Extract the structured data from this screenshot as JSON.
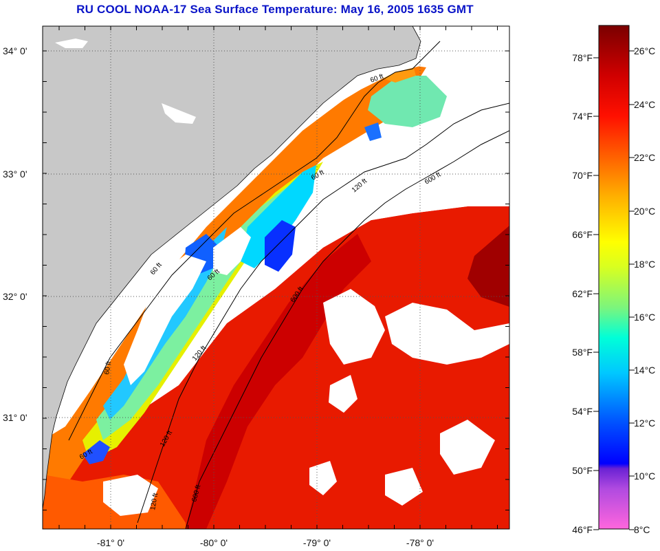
{
  "title": "RU COOL  NOAA-17  Sea Surface Temperature:  May 16, 2005 1635 GMT",
  "colors": {
    "land": "#c8c8c8",
    "cloud": "#ffffff",
    "grid": "#444444",
    "title": "#0a14c8",
    "colormap": [
      "#ff66dd",
      "#7a2ad8",
      "#0000ff",
      "#00a0ff",
      "#00e8ff",
      "#7cf57c",
      "#ffff00",
      "#ffb000",
      "#ff6000",
      "#ff0000",
      "#b00000",
      "#7a0000"
    ]
  },
  "map": {
    "latitude_labels": [
      "34° 0'",
      "33° 0'",
      "32° 0'",
      "31° 0'"
    ],
    "longitude_labels": [
      "-81° 0'",
      "-80° 0'",
      "-79° 0'",
      "-78° 0'"
    ]
  },
  "depth_contours": [
    "60 ft",
    "120 ft",
    "600 ft"
  ],
  "depth_label_instances": [
    {
      "text": "60 ft"
    },
    {
      "text": "60 ft"
    },
    {
      "text": "60 ft"
    },
    {
      "text": "60 ft"
    },
    {
      "text": "60 ft"
    },
    {
      "text": "60 ft"
    },
    {
      "text": "120 ft"
    },
    {
      "text": "120 ft"
    },
    {
      "text": "120 ft"
    },
    {
      "text": "120 ft"
    },
    {
      "text": "600 ft"
    },
    {
      "text": "600 ft"
    },
    {
      "text": "600 ft"
    }
  ],
  "colorbar": {
    "fahrenheit_labels": [
      "78°F",
      "74°F",
      "70°F",
      "66°F",
      "62°F",
      "58°F",
      "54°F",
      "50°F",
      "46°F"
    ],
    "celsius_labels": [
      "26°C",
      "24°C",
      "22°C",
      "20°C",
      "18°C",
      "16°C",
      "14°C",
      "12°C",
      "10°C",
      "8°C"
    ],
    "range_celsius": [
      8,
      27.3
    ]
  }
}
